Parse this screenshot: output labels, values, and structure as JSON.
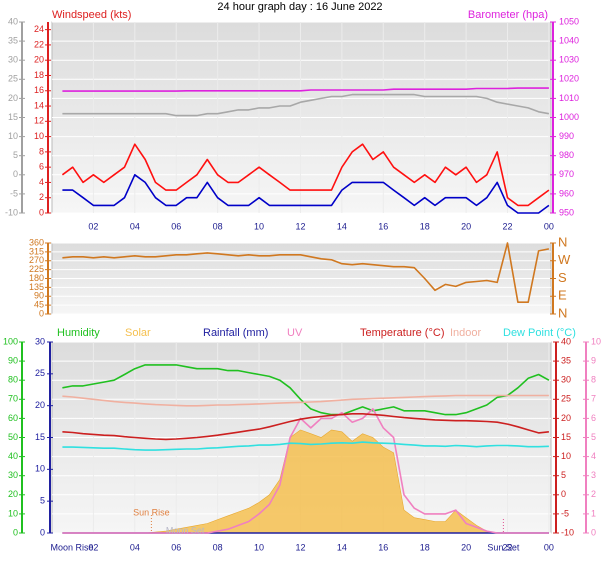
{
  "chart_data": [
    {
      "type": "line",
      "title": "24 hour graph day : 16 June 2022",
      "ylabel": "Windspeed (kts)",
      "y2label": "Barometer (hpa)",
      "x": [
        0.5,
        1,
        1.5,
        2,
        2.5,
        3,
        3.5,
        4,
        4.5,
        5,
        5.5,
        6,
        6.5,
        7,
        7.5,
        8,
        8.5,
        9,
        9.5,
        10,
        10.5,
        11,
        11.5,
        12,
        12.5,
        13,
        13.5,
        14,
        14.5,
        15,
        15.5,
        16,
        16.5,
        17,
        17.5,
        18,
        18.5,
        19,
        19.5,
        20,
        20.5,
        21,
        21.5,
        22,
        22.5,
        23,
        23.5,
        24
      ],
      "xlim": [
        0,
        24.1
      ],
      "xticks": [
        {
          "value": 2,
          "label": "02"
        },
        {
          "value": 4,
          "label": "04"
        },
        {
          "value": 6,
          "label": "06"
        },
        {
          "value": 8,
          "label": "08"
        },
        10,
        12,
        14,
        16,
        18,
        20,
        22,
        {
          "value": 24,
          "label": "00"
        }
      ],
      "ylim": [
        0,
        25
      ],
      "yticks": [
        0,
        2,
        4,
        6,
        8,
        10,
        12,
        14,
        16,
        18,
        20,
        22,
        24
      ],
      "ycolor": "#dd2020",
      "y2lim": [
        950,
        1050
      ],
      "y2ticks": [
        950,
        960,
        970,
        980,
        990,
        1000,
        1010,
        1020,
        1030,
        1040,
        1050
      ],
      "y2color": "#dd22dd",
      "y3lim": [
        -10,
        40
      ],
      "y3ticks": [
        -10,
        -5,
        0,
        5,
        10,
        15,
        20,
        25,
        30,
        35,
        40
      ],
      "y3color": "#a0a0a0",
      "grid": "y3",
      "series": [
        {
          "color": "#a8a8a8",
          "axis": "y3",
          "values": [
            16,
            16,
            16,
            16,
            16,
            16,
            16,
            16,
            16,
            16,
            16,
            15.5,
            15.5,
            15.5,
            16,
            16,
            16.5,
            17,
            17,
            17.5,
            17.5,
            18,
            18,
            19,
            19.5,
            20,
            20.5,
            20.5,
            21,
            21,
            21,
            21,
            21,
            21,
            21,
            20.5,
            20.5,
            20.5,
            20.5,
            20.5,
            20.5,
            20,
            19,
            18.5,
            18,
            17.5,
            16.5,
            16
          ]
        },
        {
          "color": "#dd22dd",
          "axis": "y2",
          "values": [
            1013.8,
            1013.8,
            1013.8,
            1013.8,
            1013.8,
            1013.8,
            1013.8,
            1013.8,
            1013.8,
            1013.8,
            1013.8,
            1013.8,
            1014,
            1014,
            1014,
            1014,
            1014,
            1014,
            1014,
            1014,
            1014,
            1014,
            1014,
            1014,
            1014.4,
            1014.4,
            1014.4,
            1014.4,
            1014.4,
            1014.4,
            1014.4,
            1014.4,
            1014.8,
            1014.8,
            1014.8,
            1014.8,
            1014.8,
            1014.8,
            1014.8,
            1014.8,
            1015.2,
            1015.2,
            1015.2,
            1015.2,
            1015.4,
            1015.4,
            1015.4,
            1015.4
          ]
        },
        {
          "color": "#ff1010",
          "axis": "y",
          "values": [
            5,
            6,
            4,
            5,
            4,
            5,
            6,
            9,
            7,
            4,
            3,
            3,
            4,
            5,
            7,
            5,
            4,
            4,
            5,
            6,
            5,
            4,
            3,
            3,
            3,
            3,
            3,
            6,
            8,
            9,
            7,
            8,
            6,
            5,
            4,
            5,
            4,
            6,
            5,
            6,
            4,
            5,
            8,
            2,
            1,
            1,
            2,
            3
          ]
        },
        {
          "color": "#0000c8",
          "axis": "y",
          "values": [
            3,
            3,
            2,
            1,
            1,
            1,
            2,
            5,
            4,
            2,
            1,
            1,
            2,
            2,
            4,
            2,
            1,
            1,
            1,
            2,
            1,
            1,
            1,
            1,
            1,
            1,
            1,
            3,
            4,
            4,
            4,
            4,
            3,
            2,
            1,
            2,
            1,
            2,
            2,
            2,
            1,
            2,
            4,
            1,
            0,
            0,
            0,
            1
          ]
        }
      ]
    },
    {
      "type": "line",
      "x": [
        0.5,
        1,
        1.5,
        2,
        2.5,
        3,
        3.5,
        4,
        4.5,
        5,
        5.5,
        6,
        6.5,
        7,
        7.5,
        8,
        8.5,
        9,
        9.5,
        10,
        10.5,
        11,
        11.5,
        12,
        12.5,
        13,
        13.5,
        14,
        14.5,
        15,
        15.5,
        16,
        16.5,
        17,
        17.5,
        18,
        18.5,
        19,
        19.5,
        20,
        20.5,
        21,
        21.5,
        22,
        22.5,
        23,
        23.5,
        24
      ],
      "xlim": [
        0,
        24.1
      ],
      "ylim": [
        0,
        360
      ],
      "yticks": [
        0,
        45,
        90,
        135,
        180,
        225,
        270,
        315,
        360
      ],
      "ycolor": "#d07820",
      "y2lim": [
        0,
        360
      ],
      "y2ticks": [
        {
          "value": 360,
          "label": "N"
        },
        {
          "value": 270,
          "label": "W"
        },
        {
          "value": 180,
          "label": "S"
        },
        {
          "value": 90,
          "label": "E"
        },
        {
          "value": 0,
          "label": "N"
        }
      ],
      "y2color": "#d07820",
      "grid": "y",
      "series": [
        {
          "color": "#d07820",
          "axis": "y",
          "values": [
            285,
            290,
            290,
            285,
            290,
            285,
            290,
            295,
            290,
            290,
            295,
            300,
            300,
            305,
            310,
            305,
            300,
            295,
            300,
            295,
            295,
            300,
            300,
            300,
            290,
            280,
            275,
            255,
            250,
            255,
            250,
            245,
            240,
            240,
            235,
            180,
            120,
            150,
            140,
            160,
            165,
            170,
            160,
            360,
            60,
            60,
            320,
            330
          ]
        }
      ]
    },
    {
      "type": "line",
      "x": [
        0.5,
        1,
        1.5,
        2,
        2.5,
        3,
        3.5,
        4,
        4.5,
        5,
        5.5,
        6,
        6.5,
        7,
        7.5,
        8,
        8.5,
        9,
        9.5,
        10,
        10.5,
        11,
        11.5,
        12,
        12.5,
        13,
        13.5,
        14,
        14.5,
        15,
        15.5,
        16,
        16.5,
        17,
        17.5,
        18,
        18.5,
        19,
        19.5,
        20,
        20.5,
        21,
        21.5,
        22,
        22.5,
        23,
        23.5,
        24
      ],
      "xlim": [
        0,
        24.1
      ],
      "xticks": [
        {
          "value": 2,
          "label": "02"
        },
        {
          "value": 4,
          "label": "04"
        },
        {
          "value": 6,
          "label": "06"
        },
        {
          "value": 8,
          "label": "08"
        },
        10,
        12,
        14,
        16,
        18,
        20,
        22,
        {
          "value": 24,
          "label": "00"
        }
      ],
      "ylim": [
        0,
        100
      ],
      "yticks": [
        0,
        10,
        20,
        30,
        40,
        50,
        60,
        70,
        80,
        90,
        100
      ],
      "ycolor": "#20c020",
      "y2lim": [
        -10,
        40
      ],
      "y2ticks": [
        -10,
        -5,
        0,
        5,
        10,
        15,
        20,
        25,
        30,
        35,
        40
      ],
      "y2color": "#cc2020",
      "y3lim": [
        0,
        30
      ],
      "y3ticks": [
        0,
        5,
        10,
        15,
        20,
        25,
        30
      ],
      "y3color": "#2020a0",
      "y4lim": [
        0,
        10
      ],
      "y4ticks": [
        0,
        1,
        2,
        3,
        4,
        5,
        6,
        7,
        8,
        9,
        10
      ],
      "y4color": "#f080c0",
      "grid": "y",
      "series": [
        {
          "name": "Humidity",
          "color": "#20c020",
          "axis": "y",
          "values": [
            76,
            77,
            77,
            78,
            79,
            80,
            83,
            86,
            88,
            88,
            88,
            88,
            87,
            86,
            86,
            86,
            85,
            85,
            84,
            83,
            82,
            80,
            76,
            70,
            65,
            63,
            62,
            62,
            64,
            66,
            64,
            65,
            66,
            64,
            64,
            64,
            63,
            62,
            62,
            63,
            65,
            67,
            71,
            72,
            76,
            81,
            83,
            80
          ]
        },
        {
          "name": "Solar",
          "color": "#f5c050",
          "axis": "y",
          "area": true,
          "values": [
            0,
            0,
            0,
            0,
            0,
            0,
            0,
            0,
            0,
            0.5,
            1,
            2,
            3,
            4,
            5,
            7,
            9,
            11,
            13,
            16,
            20,
            28,
            50,
            54,
            52,
            50,
            54,
            53,
            48,
            52,
            50,
            45,
            42,
            12,
            8,
            7,
            6,
            6,
            12,
            8,
            4,
            1,
            0,
            0,
            0,
            0,
            0,
            0
          ]
        },
        {
          "name": "Rainfall (mm)",
          "color": "#2020a0",
          "axis": "y3",
          "values": [
            0,
            0,
            0,
            0,
            0,
            0,
            0,
            0,
            0,
            0,
            0,
            0,
            0,
            0,
            0,
            0,
            0,
            0,
            0,
            0,
            0,
            0,
            0,
            0,
            0,
            0,
            0,
            0,
            0,
            0,
            0,
            0,
            0,
            0,
            0,
            0,
            0,
            0,
            0,
            0,
            0,
            0,
            0,
            0,
            0,
            0,
            0,
            0
          ]
        },
        {
          "name": "UV",
          "color": "#f080c0",
          "axis": "y4",
          "values": [
            0,
            0,
            0,
            0,
            0,
            0,
            0,
            0,
            0,
            0,
            0,
            0,
            0,
            0,
            0,
            0.1,
            0.2,
            0.4,
            0.6,
            1,
            1.5,
            2.5,
            5,
            6,
            5.5,
            6,
            6,
            6.3,
            5.8,
            6,
            6.5,
            5.5,
            5,
            2,
            1.3,
            1,
            1,
            1,
            1.2,
            0.5,
            0.3,
            0.1,
            0,
            0,
            0,
            0,
            0,
            0
          ]
        },
        {
          "name": "Temperature (°C)",
          "color": "#cc2020",
          "axis": "y2",
          "values": [
            16.5,
            16.3,
            16,
            15.8,
            15.6,
            15.5,
            15.2,
            15,
            14.8,
            14.6,
            14.5,
            14.6,
            14.8,
            15,
            15.3,
            15.6,
            16,
            16.4,
            16.8,
            17.2,
            17.8,
            18.5,
            19.2,
            19.8,
            20.2,
            20.5,
            20.8,
            21,
            21.2,
            21.2,
            21,
            20.8,
            20.5,
            20.2,
            20,
            19.8,
            19.6,
            19.5,
            19.4,
            19.4,
            19.3,
            19.2,
            19,
            18.5,
            17.8,
            17,
            16.2,
            16.5
          ]
        },
        {
          "name": "Indoor",
          "color": "#f0b0a0",
          "axis": "y2",
          "values": [
            25.8,
            25.6,
            25.3,
            25,
            24.7,
            24.4,
            24.2,
            24,
            23.8,
            23.6,
            23.5,
            23.4,
            23.3,
            23.3,
            23.4,
            23.5,
            23.5,
            23.6,
            23.7,
            23.8,
            23.9,
            24,
            24.1,
            24.2,
            24.3,
            24.4,
            24.6,
            24.8,
            25,
            25.1,
            25.2,
            25.3,
            25.4,
            25.5,
            25.6,
            25.7,
            25.8,
            25.9,
            26,
            26,
            26,
            26,
            26,
            26,
            26,
            26,
            26,
            26
          ]
        },
        {
          "name": "Dew Point (°C)",
          "color": "#30e0e0",
          "axis": "y2",
          "values": [
            12.5,
            12.5,
            12.4,
            12.3,
            12.2,
            12.2,
            12,
            11.8,
            11.7,
            11.7,
            11.8,
            11.9,
            12,
            12,
            12.2,
            12.3,
            12.5,
            12.7,
            12.8,
            13,
            13,
            13.2,
            13.5,
            13.4,
            13.2,
            13.3,
            13.5,
            13.6,
            13.5,
            13.8,
            13.6,
            13.5,
            13.4,
            13.2,
            13,
            12.8,
            12.8,
            12.7,
            12.9,
            12.8,
            12.6,
            12.8,
            12.9,
            12.9,
            12.8,
            12.6,
            12.6,
            12.7
          ]
        }
      ],
      "annotations": [
        {
          "text": "Sun Rise",
          "x": 4.8,
          "color": "#e08040"
        },
        {
          "text": "Sun Set",
          "x": 21.8,
          "color": "#202090"
        },
        {
          "text": "Moon Rise",
          "x": 0,
          "color": "#202090"
        },
        {
          "text": "Moon Set",
          "x": 5.5,
          "color": "#b8b8c8"
        }
      ]
    }
  ]
}
